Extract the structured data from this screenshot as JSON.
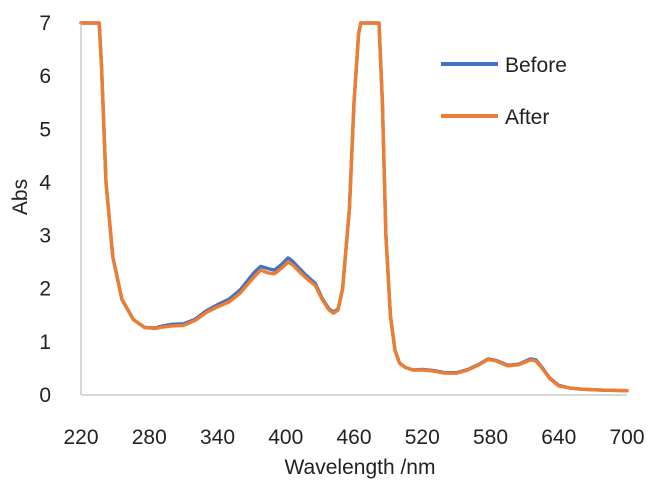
{
  "chart_data": {
    "type": "line",
    "title": "",
    "xlabel": "Wavelength /nm",
    "ylabel": "Abs",
    "xlim": [
      220,
      700
    ],
    "ylim": [
      0,
      7
    ],
    "xticks": [
      220,
      280,
      340,
      400,
      460,
      520,
      580,
      640,
      700
    ],
    "yticks": [
      0,
      1,
      2,
      3,
      4,
      5,
      6,
      7
    ],
    "grid": false,
    "legend_position": "top-right",
    "series": [
      {
        "name": "Before",
        "color": "#4472C4",
        "x": [
          220,
          236,
          238,
          242,
          248,
          256,
          266,
          276,
          285,
          292,
          300,
          310,
          320,
          330,
          340,
          350,
          360,
          372,
          378,
          384,
          390,
          396,
          402,
          406,
          412,
          418,
          426,
          432,
          438,
          442,
          446,
          450,
          456,
          460,
          464,
          466,
          482,
          485,
          488,
          492,
          496,
          500,
          505,
          512,
          520,
          530,
          540,
          550,
          560,
          570,
          578,
          585,
          595,
          605,
          615,
          620,
          626,
          632,
          640,
          650,
          660,
          680,
          700
        ],
        "y": [
          7,
          7,
          6.2,
          4.0,
          2.6,
          1.8,
          1.42,
          1.27,
          1.26,
          1.3,
          1.33,
          1.34,
          1.42,
          1.58,
          1.7,
          1.8,
          1.98,
          2.3,
          2.42,
          2.38,
          2.35,
          2.45,
          2.58,
          2.52,
          2.38,
          2.25,
          2.1,
          1.82,
          1.62,
          1.56,
          1.62,
          2.0,
          3.5,
          5.5,
          6.8,
          7,
          7,
          5.5,
          3.0,
          1.5,
          0.85,
          0.6,
          0.52,
          0.47,
          0.48,
          0.46,
          0.42,
          0.42,
          0.48,
          0.58,
          0.68,
          0.65,
          0.56,
          0.58,
          0.68,
          0.66,
          0.5,
          0.32,
          0.18,
          0.13,
          0.11,
          0.09,
          0.08
        ]
      },
      {
        "name": "After",
        "color": "#ED7D31",
        "x": [
          220,
          236,
          238,
          242,
          248,
          256,
          266,
          276,
          285,
          292,
          300,
          310,
          320,
          330,
          340,
          350,
          360,
          372,
          378,
          384,
          390,
          396,
          402,
          406,
          412,
          418,
          426,
          432,
          438,
          442,
          446,
          450,
          456,
          460,
          464,
          466,
          482,
          485,
          488,
          492,
          496,
          500,
          505,
          512,
          520,
          530,
          540,
          550,
          560,
          570,
          578,
          585,
          595,
          605,
          615,
          620,
          626,
          632,
          640,
          650,
          660,
          680,
          700
        ],
        "y": [
          7,
          7,
          6.2,
          4.0,
          2.6,
          1.8,
          1.42,
          1.27,
          1.25,
          1.28,
          1.3,
          1.31,
          1.4,
          1.55,
          1.66,
          1.75,
          1.92,
          2.22,
          2.35,
          2.3,
          2.28,
          2.38,
          2.5,
          2.45,
          2.32,
          2.2,
          2.06,
          1.8,
          1.6,
          1.54,
          1.6,
          2.0,
          3.5,
          5.5,
          6.8,
          7,
          7,
          5.5,
          3.0,
          1.5,
          0.85,
          0.6,
          0.52,
          0.47,
          0.47,
          0.45,
          0.41,
          0.41,
          0.47,
          0.57,
          0.67,
          0.64,
          0.55,
          0.57,
          0.66,
          0.64,
          0.49,
          0.31,
          0.17,
          0.13,
          0.11,
          0.09,
          0.08
        ]
      }
    ]
  }
}
